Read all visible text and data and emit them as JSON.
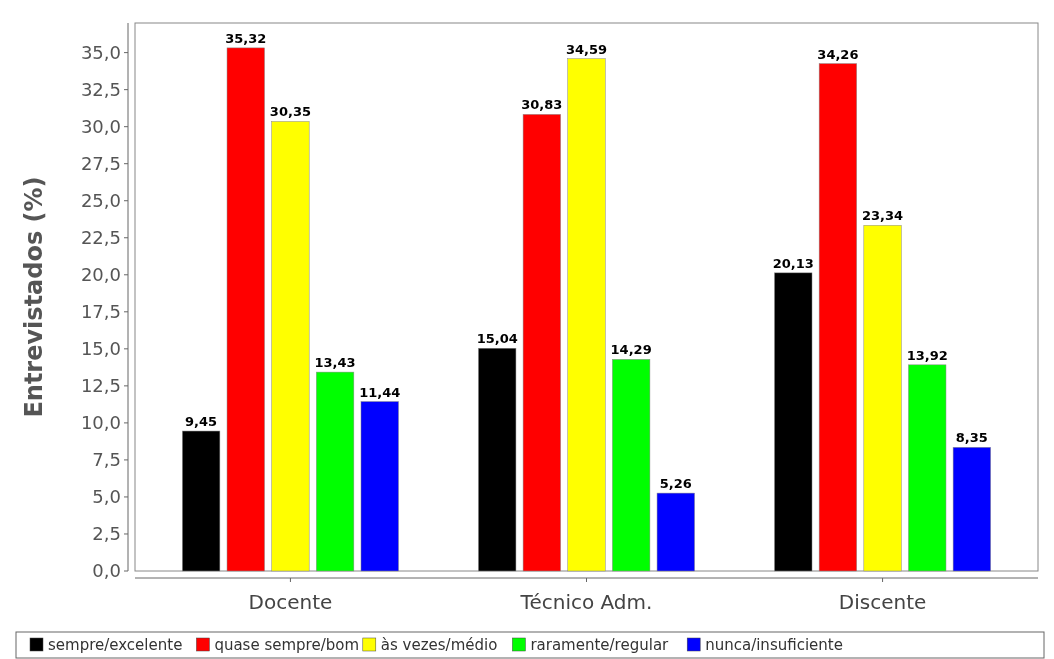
{
  "chart_data": {
    "type": "bar",
    "ylabel": "Entrevistados (%)",
    "categories": [
      "Docente",
      "Técnico Adm.",
      "Discente"
    ],
    "series": [
      {
        "name": "sempre/excelente",
        "color": "#000000",
        "values": [
          9.45,
          15.04,
          20.13
        ],
        "value_labels": [
          "9,45",
          "15,04",
          "20,13"
        ]
      },
      {
        "name": "quase sempre/bom",
        "color": "#ff0000",
        "values": [
          35.32,
          30.83,
          34.26
        ],
        "value_labels": [
          "35,32",
          "30,83",
          "34,26"
        ]
      },
      {
        "name": "às vezes/médio",
        "color": "#ffff00",
        "values": [
          30.35,
          34.59,
          23.34
        ],
        "value_labels": [
          "30,35",
          "34,59",
          "23,34"
        ]
      },
      {
        "name": "raramente/regular",
        "color": "#00ff00",
        "values": [
          13.43,
          14.29,
          13.92
        ],
        "value_labels": [
          "13,43",
          "14,29",
          "13,92"
        ]
      },
      {
        "name": "nunca/insuficiente",
        "color": "#0000ff",
        "values": [
          11.44,
          5.26,
          8.35
        ],
        "value_labels": [
          "11,44",
          "5,26",
          "8,35"
        ]
      }
    ],
    "ylim": [
      0,
      37
    ],
    "yticks": [
      {
        "value": 0,
        "label": "0,0"
      },
      {
        "value": 2.5,
        "label": "2,5"
      },
      {
        "value": 5,
        "label": "5,0"
      },
      {
        "value": 7.5,
        "label": "7,5"
      },
      {
        "value": 10,
        "label": "10,0"
      },
      {
        "value": 12.5,
        "label": "12,5"
      },
      {
        "value": 15,
        "label": "15,0"
      },
      {
        "value": 17.5,
        "label": "17,5"
      },
      {
        "value": 20,
        "label": "20,0"
      },
      {
        "value": 22.5,
        "label": "22,5"
      },
      {
        "value": 25,
        "label": "25,0"
      },
      {
        "value": 27.5,
        "label": "27,5"
      },
      {
        "value": 30,
        "label": "30,0"
      },
      {
        "value": 32.5,
        "label": "32,5"
      },
      {
        "value": 35,
        "label": "35,0"
      }
    ],
    "grid": false,
    "legend": "bottom"
  }
}
